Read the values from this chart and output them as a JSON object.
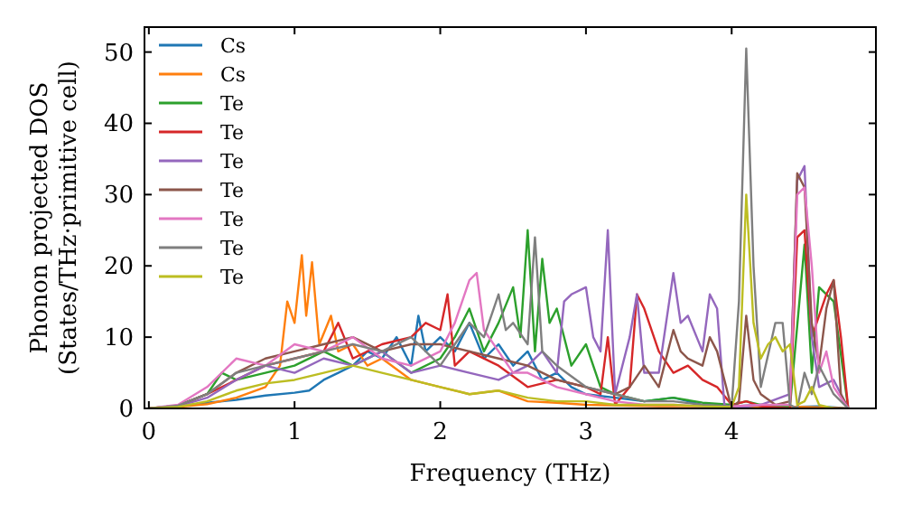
{
  "chart_data": {
    "type": "line",
    "xlabel": "Frequency (THz)",
    "ylabel": "Phonon projected DOS\n(States/THz·primitive cell)",
    "xlim": [
      -0.03,
      4.99
    ],
    "ylim": [
      0,
      53.5
    ],
    "xticks": [
      0,
      1,
      2,
      3,
      4
    ],
    "yticks": [
      0,
      10,
      20,
      30,
      40,
      50
    ],
    "legend": "top left",
    "grid": false,
    "line_style": "solid",
    "series": [
      {
        "name": "Cs",
        "color": "#1f77b4",
        "x": [
          0,
          0.2,
          0.4,
          0.6,
          0.8,
          1.0,
          1.1,
          1.2,
          1.3,
          1.4,
          1.5,
          1.6,
          1.7,
          1.8,
          1.85,
          1.9,
          2.0,
          2.1,
          2.2,
          2.3,
          2.4,
          2.5,
          2.6,
          2.7,
          2.8,
          2.9,
          3.0,
          3.2,
          3.4,
          3.6,
          3.8,
          4.0,
          4.2,
          4.4,
          4.6,
          4.8
        ],
        "values": [
          0,
          0.3,
          0.8,
          1.2,
          1.8,
          2.2,
          2.5,
          4,
          5,
          6,
          8,
          7,
          10,
          6,
          13,
          8,
          10,
          8,
          12,
          7,
          9,
          6,
          8,
          4,
          5,
          3,
          2,
          1.5,
          1,
          1.5,
          0.5,
          0.3,
          0.5,
          0.2,
          0.3,
          0
        ]
      },
      {
        "name": "Cs",
        "color": "#ff7f0e",
        "x": [
          0,
          0.2,
          0.4,
          0.6,
          0.8,
          0.9,
          0.95,
          1.0,
          1.05,
          1.08,
          1.12,
          1.17,
          1.25,
          1.3,
          1.4,
          1.5,
          1.6,
          1.8,
          2.0,
          2.2,
          2.4,
          2.6,
          2.8,
          3.0,
          3.5,
          4.0,
          4.5,
          4.8
        ],
        "values": [
          0,
          0.2,
          0.6,
          1.5,
          3,
          6,
          15,
          12,
          21.5,
          13,
          20.5,
          9,
          13,
          8,
          9,
          6,
          7,
          4,
          3,
          2,
          2.5,
          1,
          0.8,
          0.5,
          0.3,
          0.3,
          0.2,
          0
        ]
      },
      {
        "name": "Te",
        "color": "#2ca02c",
        "x": [
          0,
          0.2,
          0.4,
          0.5,
          0.6,
          0.8,
          1.0,
          1.2,
          1.4,
          1.6,
          1.8,
          2.0,
          2.1,
          2.2,
          2.3,
          2.4,
          2.5,
          2.55,
          2.6,
          2.65,
          2.7,
          2.75,
          2.8,
          2.9,
          3.0,
          3.1,
          3.2,
          3.4,
          3.6,
          3.8,
          4.0,
          4.1,
          4.2,
          4.4,
          4.5,
          4.55,
          4.6,
          4.7,
          4.8
        ],
        "values": [
          0,
          0.4,
          2,
          5,
          4,
          5,
          6,
          8,
          6,
          8,
          5,
          7,
          10,
          14,
          8,
          12,
          17,
          10,
          25,
          8,
          21,
          12,
          14,
          6,
          9,
          3,
          2,
          1,
          1.5,
          0.8,
          0.5,
          1,
          0.5,
          0.2,
          23,
          5,
          17,
          15,
          0
        ]
      },
      {
        "name": "Te",
        "color": "#d62728",
        "x": [
          0,
          0.2,
          0.4,
          0.6,
          0.8,
          1.0,
          1.2,
          1.3,
          1.4,
          1.6,
          1.8,
          1.9,
          2.0,
          2.05,
          2.1,
          2.2,
          2.4,
          2.6,
          2.8,
          3.0,
          3.1,
          3.15,
          3.2,
          3.3,
          3.35,
          3.4,
          3.5,
          3.6,
          3.7,
          3.8,
          3.9,
          4.0,
          4.1,
          4.2,
          4.4,
          4.45,
          4.5,
          4.55,
          4.6,
          4.65,
          4.7,
          4.75,
          4.8
        ],
        "values": [
          0,
          0.4,
          2,
          4,
          6,
          7,
          8,
          12,
          7,
          9,
          10,
          12,
          11,
          16,
          6,
          8,
          6,
          3,
          4,
          3,
          2,
          10,
          0.5,
          3,
          16,
          14,
          8,
          5,
          6,
          4,
          3,
          0.5,
          1,
          0.3,
          0,
          24,
          25,
          10,
          13,
          16,
          18,
          10,
          0
        ]
      },
      {
        "name": "Te",
        "color": "#9467bd",
        "x": [
          0,
          0.2,
          0.4,
          0.6,
          0.8,
          1.0,
          1.2,
          1.4,
          1.6,
          1.8,
          2.0,
          2.2,
          2.4,
          2.6,
          2.7,
          2.8,
          2.85,
          2.9,
          3.0,
          3.05,
          3.1,
          3.15,
          3.2,
          3.3,
          3.35,
          3.4,
          3.5,
          3.6,
          3.65,
          3.7,
          3.8,
          3.85,
          3.9,
          3.95,
          4.0,
          4.2,
          4.4,
          4.45,
          4.5,
          4.55,
          4.6,
          4.7,
          4.8
        ],
        "values": [
          0,
          0.3,
          1.5,
          4,
          6,
          5,
          7,
          6,
          8,
          5,
          6,
          5,
          4,
          6,
          8,
          5,
          15,
          16,
          17,
          10,
          8,
          25,
          2,
          10,
          16,
          5,
          5,
          19,
          12,
          13,
          8,
          16,
          14,
          0.5,
          0,
          0.5,
          2,
          32,
          34,
          10,
          3,
          4,
          0
        ]
      },
      {
        "name": "Te",
        "color": "#8c564b",
        "x": [
          0,
          0.2,
          0.4,
          0.6,
          0.8,
          1.0,
          1.2,
          1.4,
          1.6,
          1.8,
          2.0,
          2.2,
          2.4,
          2.6,
          2.8,
          3.0,
          3.2,
          3.3,
          3.4,
          3.5,
          3.6,
          3.65,
          3.7,
          3.8,
          3.85,
          3.9,
          4.0,
          4.05,
          4.1,
          4.15,
          4.2,
          4.3,
          4.4,
          4.45,
          4.5,
          4.55,
          4.6,
          4.65,
          4.7,
          4.75,
          4.8
        ],
        "values": [
          0,
          0.4,
          2,
          5,
          7,
          8,
          9,
          10,
          8,
          9,
          9,
          8,
          7,
          6,
          4,
          3,
          2,
          3,
          6,
          3,
          11,
          8,
          7,
          6,
          10,
          8,
          0,
          1,
          13,
          4,
          2,
          0.5,
          1,
          33,
          31,
          12,
          6,
          14,
          18,
          2,
          0
        ]
      },
      {
        "name": "Te",
        "color": "#e377c2",
        "x": [
          0,
          0.2,
          0.4,
          0.6,
          0.8,
          1.0,
          1.2,
          1.4,
          1.6,
          1.8,
          2.0,
          2.1,
          2.2,
          2.25,
          2.3,
          2.4,
          2.5,
          2.6,
          2.8,
          3.0,
          3.2,
          3.4,
          3.6,
          3.8,
          4.0,
          4.2,
          4.4,
          4.45,
          4.5,
          4.55,
          4.6,
          4.65,
          4.7,
          4.8
        ],
        "values": [
          0,
          0.5,
          3,
          7,
          6,
          9,
          8,
          10,
          7,
          6,
          8,
          12,
          18,
          19,
          11,
          8,
          5,
          5,
          3,
          2,
          1,
          0.5,
          0.5,
          0.3,
          0.3,
          0.5,
          0.5,
          30,
          31,
          20,
          5,
          8,
          3,
          0
        ]
      },
      {
        "name": "Te",
        "color": "#7f7f7f",
        "x": [
          0,
          0.2,
          0.4,
          0.6,
          0.8,
          1.0,
          1.2,
          1.4,
          1.6,
          1.8,
          2.0,
          2.1,
          2.2,
          2.3,
          2.4,
          2.45,
          2.5,
          2.6,
          2.65,
          2.7,
          2.8,
          3.0,
          3.2,
          3.4,
          3.6,
          3.8,
          4.0,
          4.05,
          4.1,
          4.15,
          4.2,
          4.3,
          4.35,
          4.4,
          4.45,
          4.5,
          4.55,
          4.6,
          4.7,
          4.8
        ],
        "values": [
          0,
          0.4,
          2,
          5,
          6,
          7,
          8,
          9,
          8,
          10,
          6,
          9,
          12,
          10,
          16,
          11,
          12,
          9,
          24,
          8,
          6,
          3,
          2,
          1,
          1,
          0.5,
          0.3,
          15,
          50.5,
          20,
          3,
          12,
          12,
          0.5,
          0,
          5,
          2,
          6,
          2,
          0
        ]
      },
      {
        "name": "Te",
        "color": "#bcbd22",
        "x": [
          0,
          0.2,
          0.4,
          0.6,
          0.8,
          1.0,
          1.2,
          1.4,
          1.6,
          1.8,
          2.0,
          2.2,
          2.4,
          2.6,
          2.8,
          3.0,
          3.2,
          3.4,
          3.6,
          3.8,
          4.0,
          4.05,
          4.1,
          4.15,
          4.2,
          4.25,
          4.3,
          4.35,
          4.4,
          4.45,
          4.5,
          4.55,
          4.6,
          4.7
        ],
        "values": [
          0,
          0.2,
          1,
          2.5,
          3.5,
          4,
          5,
          6,
          5,
          4,
          3,
          2,
          2.5,
          1.5,
          1,
          1,
          0.5,
          0.5,
          0.5,
          0.3,
          0.2,
          3,
          30,
          12,
          7,
          9,
          10,
          8,
          9,
          0.5,
          1,
          3,
          0.5,
          0
        ]
      }
    ]
  }
}
